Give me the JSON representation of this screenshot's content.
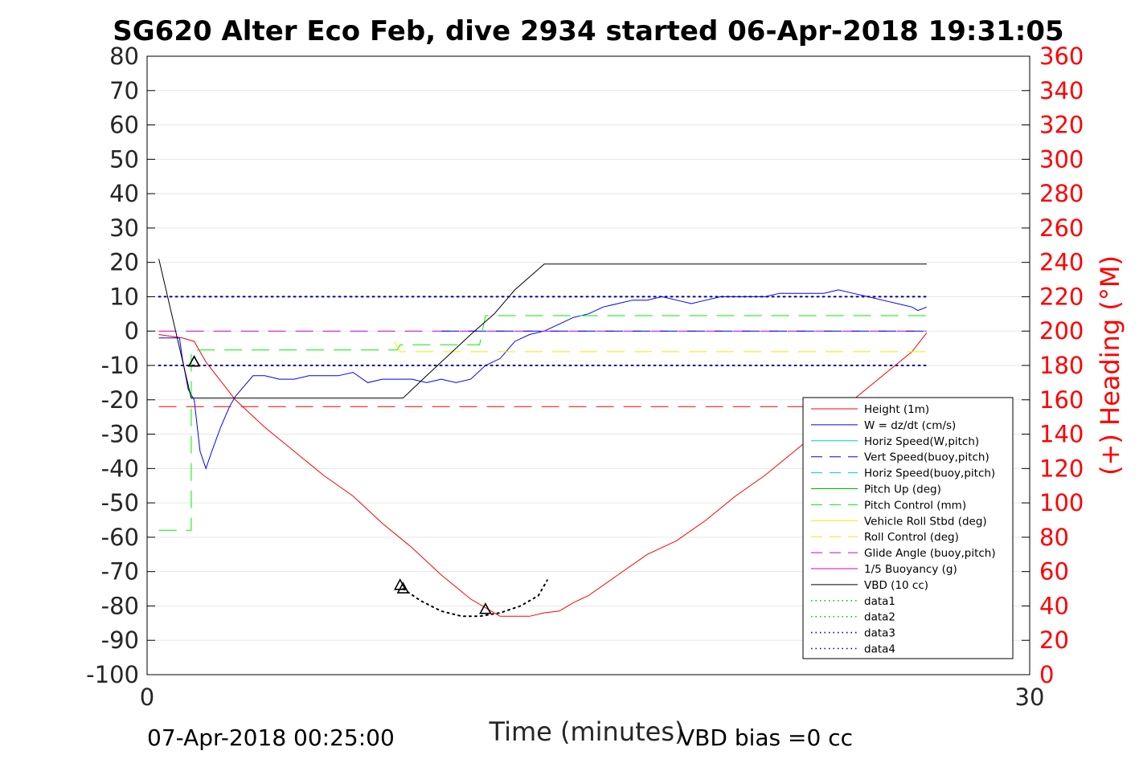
{
  "title": "SG620 Alter Eco Feb, dive 2934 started 06-Apr-2018 19:31:05",
  "footer": {
    "end_time": "07-Apr-2018 00:25:00",
    "vbd_bias": "VBD bias =0 cc"
  },
  "chart_data": {
    "type": "line",
    "title": "SG620 Alter Eco Feb, dive 2934 started 06-Apr-2018 19:31:05",
    "xlabel": "Time (minutes)",
    "ylabel_left": "",
    "ylabel_right": "(+) Heading (°M)",
    "xlim": [
      0,
      30
    ],
    "ylim_left": [
      -100,
      80
    ],
    "ylim_right": [
      0,
      360
    ],
    "x_ticks": [
      "0",
      "30"
    ],
    "y_ticks_left": [
      "80",
      "70",
      "60",
      "50",
      "40",
      "30",
      "20",
      "10",
      "0",
      "-10",
      "-20",
      "-30",
      "-40",
      "-50",
      "-60",
      "-70",
      "-80",
      "-90",
      "-100"
    ],
    "y_ticks_right": [
      "360",
      "340",
      "320",
      "300",
      "280",
      "260",
      "240",
      "220",
      "200",
      "180",
      "160",
      "140",
      "120",
      "100",
      "80",
      "60",
      "40",
      "20",
      "0"
    ],
    "grid": "horizontal",
    "legend_position": "right",
    "colors": {
      "height": "#ff0000",
      "w": "#0000ff",
      "pitch_control": "#00ee00",
      "roll_control": "#eeee00",
      "glide_angle": "#cc00cc",
      "vbd": "#000000",
      "data": "#00aa00",
      "data_blue": "#000099"
    },
    "legend": [
      {
        "label": "Height (1m)",
        "color": "#ff0000",
        "style": "solid"
      },
      {
        "label": "W = dz/dt (cm/s)",
        "color": "#0000ff",
        "style": "solid"
      },
      {
        "label": "Horiz Speed(W,pitch)",
        "color": "#00cccc",
        "style": "solid"
      },
      {
        "label": "Vert Speed(buoy,pitch)",
        "color": "#0000ff",
        "style": "dashed"
      },
      {
        "label": "Horiz Speed(buoy,pitch)",
        "color": "#00cccc",
        "style": "dashed"
      },
      {
        "label": "Pitch Up (deg)",
        "color": "#00aa00",
        "style": "solid"
      },
      {
        "label": "Pitch Control (mm)",
        "color": "#00ee00",
        "style": "dashed"
      },
      {
        "label": "Vehicle Roll Stbd (deg)",
        "color": "#eeee00",
        "style": "solid"
      },
      {
        "label": "Roll Control (deg)",
        "color": "#eeee00",
        "style": "dashed"
      },
      {
        "label": "Glide Angle (buoy,pitch)",
        "color": "#cc00cc",
        "style": "dashed"
      },
      {
        "label": "1/5 Buoyancy (g)",
        "color": "#cc00cc",
        "style": "solid"
      },
      {
        "label": "VBD (10 cc)",
        "color": "#000000",
        "style": "solid"
      },
      {
        "label": "data1",
        "color": "#00cc00",
        "style": "dotted"
      },
      {
        "label": "data2",
        "color": "#00cc00",
        "style": "dotted"
      },
      {
        "label": "data3",
        "color": "#000099",
        "style": "dotted"
      },
      {
        "label": "data4",
        "color": "#000099",
        "style": "dotted"
      }
    ],
    "series": [
      {
        "key": "height",
        "axis": "left",
        "style": "solid",
        "color": "#ff0000",
        "x": [
          0.4,
          1.2,
          1.6,
          2.0,
          3.0,
          4.0,
          5.0,
          6.0,
          7.0,
          8.0,
          9.0,
          10.0,
          11.0,
          12.0,
          13.0,
          13.5,
          14.0,
          14.5,
          15.0,
          16.0,
          17.0,
          18.0,
          19.0,
          20.0,
          21.0,
          22.0,
          23.0,
          24.0,
          25.0,
          26.0,
          26.5
        ],
        "y": [
          -1,
          -2,
          -3,
          -9,
          -20,
          -28,
          -35,
          -42,
          -48,
          -56,
          -63,
          -71,
          -78,
          -83,
          -83,
          -82,
          -81.5,
          -79,
          -77,
          -71,
          -65,
          -61,
          -55,
          -48,
          -42,
          -35,
          -28,
          -20,
          -13,
          -6,
          -0.5
        ]
      },
      {
        "key": "w",
        "axis": "left",
        "style": "solid",
        "color": "#0000ff",
        "x": [
          0.4,
          0.9,
          1.1,
          1.2,
          1.4,
          1.6,
          1.8,
          2.0,
          2.2,
          2.5,
          2.8,
          3.0,
          3.3,
          3.6,
          4.0,
          4.5,
          5.0,
          5.5,
          6.0,
          6.5,
          7.0,
          7.5,
          8.0,
          8.5,
          9.0,
          9.5,
          10.0,
          10.5,
          11.0,
          11.5,
          12.0,
          12.5,
          13.0,
          13.5,
          14.0,
          14.5,
          15.0,
          15.5,
          16.0,
          16.5,
          17.0,
          17.5,
          18.0,
          18.5,
          19.0,
          19.5,
          20.0,
          20.5,
          21.0,
          21.5,
          22.0,
          22.5,
          23.0,
          23.5,
          24.0,
          24.5,
          25.0,
          25.5,
          26.0,
          26.2,
          26.5
        ],
        "y": [
          -2,
          -2,
          -2,
          -8,
          -17,
          -20,
          -35,
          -40,
          -35,
          -28,
          -22,
          -19,
          -16,
          -13,
          -13,
          -14,
          -14,
          -13,
          -13,
          -13,
          -12,
          -15,
          -14,
          -14,
          -14,
          -15,
          -14,
          -15,
          -14,
          -10,
          -8,
          -3,
          -1,
          0,
          2,
          4,
          5,
          7,
          8,
          9,
          9,
          10,
          9,
          8,
          9,
          10,
          10,
          10,
          10,
          11,
          11,
          11,
          11,
          12,
          11,
          10,
          9,
          8,
          7,
          6,
          7
        ]
      },
      {
        "key": "pitch_control",
        "axis": "left",
        "style": "dashed",
        "color": "#00ee00",
        "x": [
          0.4,
          1.5,
          1.5,
          8.5,
          8.6,
          11.3,
          11.5,
          26.5
        ],
        "y": [
          -58,
          -58,
          -5.5,
          -5.5,
          -4,
          -4,
          4.5,
          4.5
        ]
      },
      {
        "key": "roll_control",
        "axis": "left",
        "style": "dashed",
        "color": "#eeee00",
        "x": [
          8.4,
          8.6,
          26.5
        ],
        "y": [
          -3,
          -6,
          -6
        ]
      },
      {
        "key": "glide_angle",
        "axis": "left",
        "style": "dashed",
        "color": "#cc00cc",
        "x": [
          0.4,
          26.5
        ],
        "y": [
          0,
          0
        ]
      },
      {
        "key": "vert_speed",
        "axis": "left",
        "style": "dashed",
        "color": "#0000ff",
        "x": [
          10.0,
          26.5
        ],
        "y": [
          0,
          0
        ]
      },
      {
        "key": "vbd",
        "axis": "left",
        "style": "solid",
        "color": "#000000",
        "x": [
          0.4,
          1.5,
          1.6,
          8.7,
          9.5,
          10.5,
          11.0,
          11.8,
          12.5,
          13.5,
          26.5
        ],
        "y": [
          21,
          -19.5,
          -19.5,
          -19.5,
          -13,
          -5,
          -1,
          5,
          12,
          19.5,
          19.5
        ]
      },
      {
        "key": "height_fixed",
        "axis": "left",
        "style": "dashed",
        "color": "#ff0000",
        "x": [
          0.4,
          26.5
        ],
        "y": [
          -22,
          -22
        ]
      },
      {
        "key": "data3",
        "axis": "left",
        "style": "dotted",
        "color": "#000099",
        "x": [
          0.4,
          26.5
        ],
        "y": [
          10,
          10
        ]
      },
      {
        "key": "data4",
        "axis": "left",
        "style": "dotted",
        "color": "#000099",
        "x": [
          0.4,
          26.5
        ],
        "y": [
          -10,
          -10
        ]
      },
      {
        "key": "data1",
        "axis": "left",
        "style": "dotted",
        "color": "#000000",
        "x": [
          8.7,
          9.3,
          10.0,
          10.7,
          11.3,
          12.0,
          12.7,
          13.3,
          13.6
        ],
        "y": [
          -75,
          -78.5,
          -81.5,
          -83,
          -83,
          -82,
          -80,
          -77,
          -72.5
        ]
      }
    ],
    "markers": [
      {
        "x": 1.6,
        "y": -9
      },
      {
        "x": 8.6,
        "y": -74
      },
      {
        "x": 8.7,
        "y": -75
      },
      {
        "x": 11.5,
        "y": -81
      }
    ]
  }
}
